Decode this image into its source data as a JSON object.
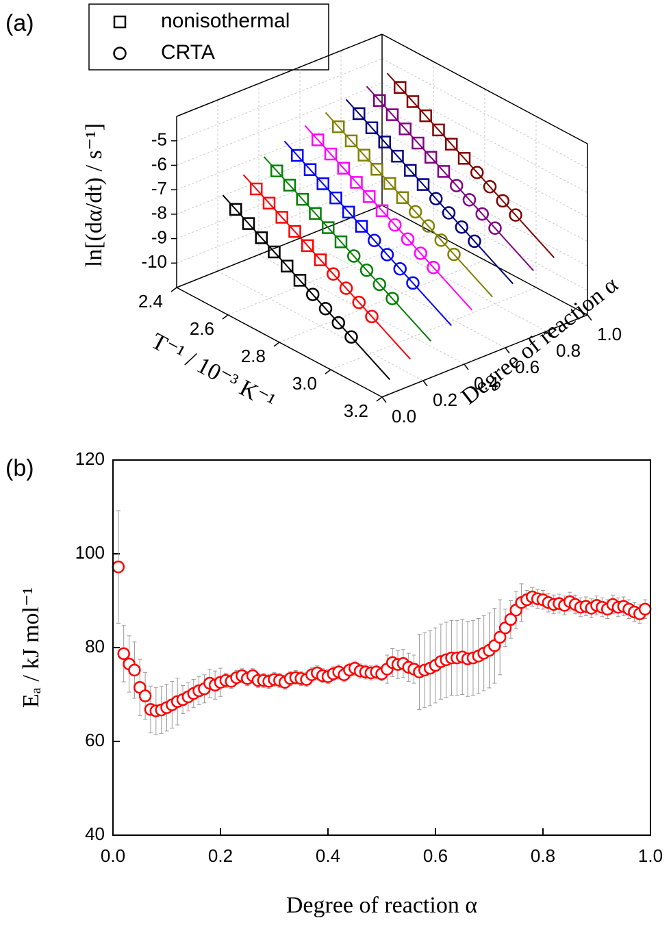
{
  "chart_data": [
    {
      "type": "scatter3d",
      "panel_label": "(a)",
      "xlabel": "T⁻¹ / 10⁻³ K⁻¹",
      "ylabel": "Degree of reaction α",
      "zlabel": "ln[(dα/dt) / s⁻¹]",
      "legend": [
        {
          "name": "nonisothermal",
          "symbol": "square"
        },
        {
          "name": "CRTA",
          "symbol": "circle"
        }
      ],
      "xlim": [
        2.4,
        3.2
      ],
      "ylim": [
        0,
        1
      ],
      "zlim": [
        -11,
        -4
      ],
      "xticks": [
        2.4,
        2.6,
        2.8,
        {
          "value": 3,
          "label": "3.0"
        },
        3.2
      ],
      "yticks": [
        {
          "value": 0,
          "label": "0.0"
        },
        0.2,
        0.4,
        0.6,
        0.8,
        {
          "value": 1,
          "label": "1.0"
        }
      ],
      "zticks": [
        -10,
        -9,
        -8,
        -7,
        -6,
        -5
      ],
      "grid": true,
      "x_nonisothermal": [
        2.55,
        2.6,
        2.65,
        2.7,
        2.75,
        2.8
      ],
      "x_crta": [
        2.85,
        2.9,
        2.95,
        3.0
      ],
      "x_fit": [
        2.5,
        3.15
      ],
      "series": [
        {
          "alpha": 0.1,
          "color": "#000000",
          "nonisothermal": [
            -7.3,
            -7.6,
            -7.9,
            -8.2,
            -8.5,
            -8.8
          ],
          "crta": [
            -9.1,
            -9.4,
            -9.7,
            -10.0
          ],
          "fit": [
            -7.0,
            -10.9
          ]
        },
        {
          "alpha": 0.2,
          "color": "#ff0000",
          "nonisothermal": [
            -6.8,
            -7.1,
            -7.4,
            -7.7,
            -8.0,
            -8.3
          ],
          "crta": [
            -8.6,
            -8.9,
            -9.2,
            -9.5
          ],
          "fit": [
            -6.5,
            -10.4
          ]
        },
        {
          "alpha": 0.3,
          "color": "#008000",
          "nonisothermal": [
            -6.4,
            -6.7,
            -7.0,
            -7.3,
            -7.6,
            -7.9
          ],
          "crta": [
            -8.2,
            -8.5,
            -8.8,
            -9.1
          ],
          "fit": [
            -6.1,
            -10.0
          ]
        },
        {
          "alpha": 0.4,
          "color": "#0000ff",
          "nonisothermal": [
            -6.1,
            -6.4,
            -6.7,
            -7.0,
            -7.3,
            -7.6
          ],
          "crta": [
            -7.9,
            -8.2,
            -8.5,
            -8.8
          ],
          "fit": [
            -5.8,
            -9.7
          ]
        },
        {
          "alpha": 0.5,
          "color": "#ff00ff",
          "nonisothermal": [
            -5.8,
            -6.1,
            -6.4,
            -6.7,
            -7.0,
            -7.3
          ],
          "crta": [
            -7.6,
            -7.9,
            -8.2,
            -8.5
          ],
          "fit": [
            -5.5,
            -9.4
          ]
        },
        {
          "alpha": 0.6,
          "color": "#808000",
          "nonisothermal": [
            -5.6,
            -5.9,
            -6.2,
            -6.5,
            -6.8,
            -7.1
          ],
          "crta": [
            -7.4,
            -7.7,
            -8.0,
            -8.3
          ],
          "fit": [
            -5.3,
            -9.2
          ]
        },
        {
          "alpha": 0.7,
          "color": "#000080",
          "nonisothermal": [
            -5.4,
            -5.7,
            -6.0,
            -6.3,
            -6.6,
            -6.9
          ],
          "crta": [
            -7.2,
            -7.5,
            -7.8,
            -8.1
          ],
          "fit": [
            -5.1,
            -9.0
          ]
        },
        {
          "alpha": 0.8,
          "color": "#800080",
          "nonisothermal": [
            -5.2,
            -5.5,
            -5.8,
            -6.1,
            -6.4,
            -6.7
          ],
          "crta": [
            -7.0,
            -7.3,
            -7.6,
            -7.9
          ],
          "fit": [
            -4.9,
            -8.8
          ]
        },
        {
          "alpha": 0.9,
          "color": "#800000",
          "nonisothermal": [
            -5.0,
            -5.3,
            -5.6,
            -5.9,
            -6.2,
            -6.5
          ],
          "crta": [
            -6.8,
            -7.1,
            -7.4,
            -7.7
          ],
          "fit": [
            -4.7,
            -8.6
          ]
        }
      ]
    },
    {
      "type": "scatter",
      "panel_label": "(b)",
      "xlabel": "Degree of reaction α",
      "ylabel": "Eₐ / kJ mol⁻¹",
      "color": "#ff0000",
      "error_color": "#999999",
      "xlim": [
        0,
        1
      ],
      "ylim": [
        40,
        120
      ],
      "xticks": [
        {
          "value": 0,
          "label": "0.0"
        },
        0.2,
        0.4,
        0.6,
        0.8,
        {
          "value": 1,
          "label": "1.0"
        }
      ],
      "yticks": [
        40,
        60,
        80,
        100,
        120
      ],
      "x": [
        0.01,
        0.02,
        0.03,
        0.04,
        0.05,
        0.06,
        0.07,
        0.08,
        0.09,
        0.1,
        0.11,
        0.12,
        0.13,
        0.14,
        0.15,
        0.16,
        0.17,
        0.18,
        0.19,
        0.2,
        0.21,
        0.22,
        0.23,
        0.24,
        0.25,
        0.26,
        0.27,
        0.28,
        0.29,
        0.3,
        0.31,
        0.32,
        0.33,
        0.34,
        0.35,
        0.36,
        0.37,
        0.38,
        0.39,
        0.4,
        0.41,
        0.42,
        0.43,
        0.44,
        0.45,
        0.46,
        0.47,
        0.48,
        0.49,
        0.5,
        0.51,
        0.52,
        0.53,
        0.54,
        0.55,
        0.56,
        0.57,
        0.58,
        0.59,
        0.6,
        0.61,
        0.62,
        0.63,
        0.64,
        0.65,
        0.66,
        0.67,
        0.68,
        0.69,
        0.7,
        0.71,
        0.72,
        0.73,
        0.74,
        0.75,
        0.76,
        0.77,
        0.78,
        0.79,
        0.8,
        0.81,
        0.82,
        0.83,
        0.84,
        0.85,
        0.86,
        0.87,
        0.88,
        0.89,
        0.9,
        0.91,
        0.92,
        0.93,
        0.94,
        0.95,
        0.96,
        0.97,
        0.98,
        0.99
      ],
      "values": [
        97.2,
        78.7,
        76.5,
        75.2,
        71.5,
        69.7,
        66.8,
        66.5,
        66.7,
        67.2,
        67.8,
        68.5,
        68.9,
        69.5,
        70.2,
        70.8,
        71.2,
        72.4,
        72.0,
        72.6,
        73.0,
        72.8,
        73.6,
        74.0,
        73.4,
        74.0,
        73.0,
        73.0,
        72.8,
        73.2,
        73.0,
        72.6,
        73.4,
        73.6,
        73.4,
        73.2,
        74.2,
        74.6,
        74.0,
        73.8,
        74.4,
        74.8,
        74.2,
        75.2,
        75.6,
        75.0,
        74.8,
        74.6,
        74.8,
        74.4,
        75.4,
        76.8,
        76.4,
        76.6,
        75.8,
        75.4,
        74.8,
        75.2,
        75.6,
        76.2,
        77.0,
        77.4,
        77.8,
        77.8,
        78.0,
        77.6,
        77.8,
        78.2,
        78.8,
        79.4,
        80.4,
        82.2,
        84.2,
        86.0,
        88.0,
        89.6,
        90.2,
        90.8,
        90.4,
        90.2,
        89.6,
        89.2,
        89.4,
        89.0,
        89.8,
        89.2,
        88.6,
        88.8,
        88.4,
        89.0,
        88.6,
        88.2,
        89.2,
        88.6,
        88.8,
        88.2,
        87.6,
        87.2,
        88.2
      ],
      "errors": [
        12,
        6,
        6,
        6,
        6,
        5,
        5,
        5,
        5,
        5,
        5,
        5,
        3,
        3,
        3,
        3,
        3,
        3,
        3,
        3,
        1.5,
        1.5,
        1.5,
        1.5,
        1.5,
        1.5,
        1.5,
        1.5,
        1.5,
        1.5,
        1.5,
        1.5,
        1.5,
        1.5,
        1.5,
        1.5,
        1.5,
        1.5,
        1.5,
        1.5,
        1.5,
        1.5,
        1.5,
        1.5,
        1.5,
        1.5,
        1.5,
        1.5,
        1.5,
        1.5,
        3,
        3,
        3,
        3,
        3,
        3,
        8,
        8,
        8,
        8,
        8,
        8,
        8,
        8,
        8,
        8,
        8,
        8,
        8,
        8,
        8,
        8,
        4,
        4,
        4,
        4,
        2,
        2,
        2,
        2,
        2,
        2,
        2,
        2,
        2,
        2,
        2,
        2,
        2,
        2,
        2,
        2,
        2,
        2,
        2,
        2,
        2,
        2,
        2
      ]
    }
  ]
}
